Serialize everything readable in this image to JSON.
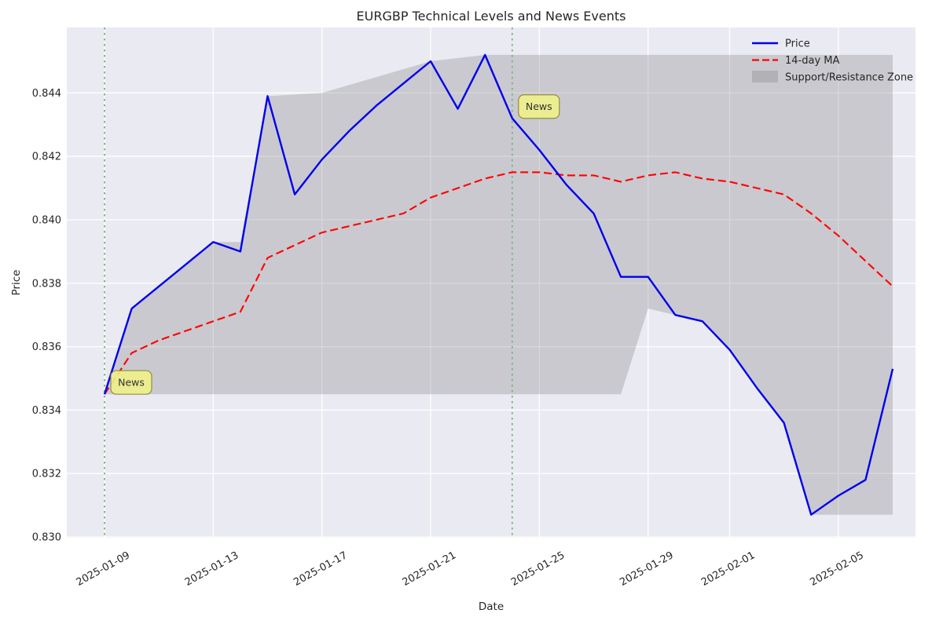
{
  "chart_data": {
    "type": "line",
    "title": "EURGBP Technical Levels and News Events",
    "xlabel": "Date",
    "ylabel": "Price",
    "grid": true,
    "legend_position": "upper right",
    "ylim": [
      0.83,
      0.8461
    ],
    "dates": [
      "2025-01-09",
      "2025-01-10",
      "2025-01-11",
      "2025-01-12",
      "2025-01-13",
      "2025-01-14",
      "2025-01-15",
      "2025-01-16",
      "2025-01-17",
      "2025-01-18",
      "2025-01-19",
      "2025-01-20",
      "2025-01-21",
      "2025-01-22",
      "2025-01-23",
      "2025-01-24",
      "2025-01-25",
      "2025-01-26",
      "2025-01-27",
      "2025-01-28",
      "2025-01-29",
      "2025-01-30",
      "2025-01-31",
      "2025-02-01",
      "2025-02-02",
      "2025-02-03",
      "2025-02-04",
      "2025-02-05",
      "2025-02-06",
      "2025-02-07"
    ],
    "series": [
      {
        "name": "Price",
        "color": "#0000ee",
        "style": "solid",
        "values": [
          0.8345,
          0.8372,
          0.8379,
          0.8386,
          0.8393,
          0.839,
          0.8439,
          0.8408,
          0.8419,
          0.8428,
          0.8436,
          0.8443,
          0.845,
          0.8435,
          0.8452,
          0.8432,
          0.8422,
          0.8411,
          0.8402,
          0.8382,
          0.8382,
          0.837,
          0.8368,
          0.8359,
          0.8347,
          0.8336,
          0.8307,
          0.8313,
          0.8318,
          0.8353
        ]
      },
      {
        "name": "14-day MA",
        "color": "#ff0000",
        "style": "dashed",
        "values": [
          0.8345,
          0.8358,
          0.8362,
          0.8365,
          0.8368,
          0.8371,
          0.8388,
          0.8392,
          0.8396,
          0.8398,
          0.84,
          0.8402,
          0.8407,
          0.841,
          0.8413,
          0.8415,
          0.8415,
          0.8414,
          0.8414,
          0.8412,
          0.8414,
          0.8415,
          0.8413,
          0.8412,
          0.841,
          0.8408,
          0.8402,
          0.8395,
          0.8387,
          0.8379
        ]
      }
    ],
    "zone": {
      "name": "Support/Resistance Zone",
      "color": "#7f7f7f",
      "opacity": 0.3,
      "upper": [
        [
          0,
          0.8345
        ],
        [
          1,
          0.8372
        ],
        [
          2,
          0.8379
        ],
        [
          3,
          0.8386
        ],
        [
          4,
          0.8393
        ],
        [
          5,
          0.8393
        ],
        [
          6,
          0.8439
        ],
        [
          8,
          0.844
        ],
        [
          12,
          0.845
        ],
        [
          14,
          0.8452
        ],
        [
          29,
          0.8452
        ]
      ],
      "lower": [
        [
          0,
          0.8345
        ],
        [
          19,
          0.8345
        ],
        [
          20,
          0.8372
        ],
        [
          21,
          0.837
        ],
        [
          22,
          0.8368
        ],
        [
          23,
          0.8359
        ],
        [
          24,
          0.8347
        ],
        [
          25,
          0.8336
        ],
        [
          26,
          0.8307
        ],
        [
          29,
          0.8307
        ]
      ]
    },
    "news_events": [
      {
        "date": "2025-01-09",
        "index": 0,
        "label": "News"
      },
      {
        "date": "2025-01-24",
        "index": 15,
        "label": "News"
      }
    ],
    "news_line_color": "#77b579",
    "news_box_fill": "#efef8a",
    "news_box_border": "#8f8f3f",
    "x_ticks": [
      {
        "index": 0,
        "label": "2025-01-09"
      },
      {
        "index": 4,
        "label": "2025-01-13"
      },
      {
        "index": 8,
        "label": "2025-01-17"
      },
      {
        "index": 12,
        "label": "2025-01-21"
      },
      {
        "index": 16,
        "label": "2025-01-25"
      },
      {
        "index": 20,
        "label": "2025-01-29"
      },
      {
        "index": 23,
        "label": "2025-02-01"
      },
      {
        "index": 27,
        "label": "2025-02-05"
      }
    ],
    "y_ticks": [
      {
        "value": 0.83,
        "label": "0.830"
      },
      {
        "value": 0.832,
        "label": "0.832"
      },
      {
        "value": 0.834,
        "label": "0.834"
      },
      {
        "value": 0.836,
        "label": "0.836"
      },
      {
        "value": 0.838,
        "label": "0.838"
      },
      {
        "value": 0.84,
        "label": "0.840"
      },
      {
        "value": 0.842,
        "label": "0.842"
      },
      {
        "value": 0.844,
        "label": "0.844"
      }
    ],
    "plot_bg_color": "#eaeaf2",
    "grid_color": "#ffffff"
  }
}
